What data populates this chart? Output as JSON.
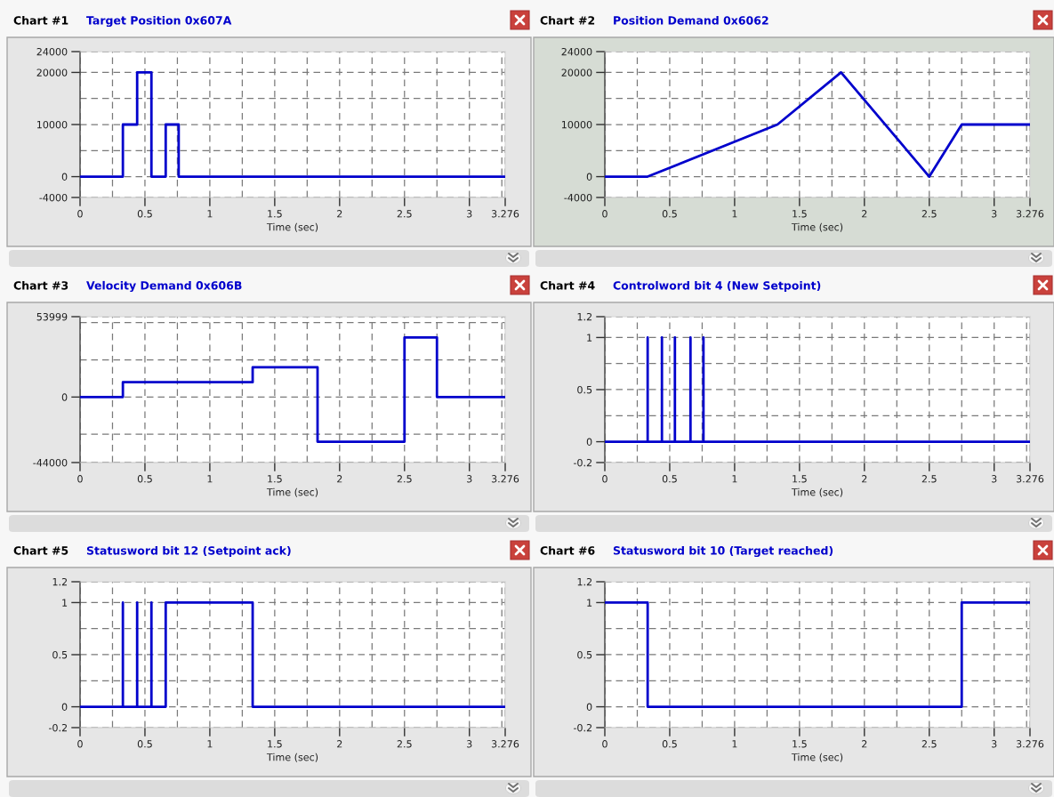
{
  "chart_data": [
    {
      "type": "step",
      "title": "Chart #1",
      "subtitle": "Target Position 0x607A",
      "xlabel": "Time (sec)",
      "color": "#0000cc",
      "grid": true,
      "x": [
        0,
        0.33,
        0.44,
        0.55,
        0.66,
        0.76,
        3.276
      ],
      "values": [
        0,
        10000,
        20000,
        0,
        10000,
        0,
        0
      ],
      "xlim": [
        0,
        3.276
      ],
      "xticks": [
        0,
        {
          "value": 0.25,
          "label": null
        },
        0.5,
        {
          "value": 0.75,
          "label": null
        },
        1,
        {
          "value": 1.25,
          "label": null
        },
        1.5,
        {
          "value": 1.75,
          "label": null
        },
        2,
        {
          "value": 2.25,
          "label": null
        },
        2.5,
        {
          "value": 2.75,
          "label": null
        },
        3,
        {
          "value": 3.25,
          "label": null
        },
        3.276
      ],
      "ylim": [
        -4000,
        24000
      ],
      "yticks": [
        24000,
        20000,
        {
          "value": 15000,
          "label": null
        },
        10000,
        {
          "value": 5000,
          "label": null
        },
        0,
        -4000
      ]
    },
    {
      "type": "line",
      "title": "Chart #2",
      "subtitle": "Position Demand 0x6062",
      "xlabel": "Time (sec)",
      "color": "#0000cc",
      "grid": true,
      "x": [
        0,
        0.33,
        1.33,
        1.82,
        2.5,
        2.75,
        3.276
      ],
      "values": [
        0,
        0,
        10000,
        20000,
        0,
        10000,
        10000
      ],
      "xlim": [
        0,
        3.276
      ],
      "xticks": [
        0,
        {
          "value": 0.25,
          "label": null
        },
        0.5,
        {
          "value": 0.75,
          "label": null
        },
        1,
        {
          "value": 1.25,
          "label": null
        },
        1.5,
        {
          "value": 1.75,
          "label": null
        },
        2,
        {
          "value": 2.25,
          "label": null
        },
        2.5,
        {
          "value": 2.75,
          "label": null
        },
        3,
        {
          "value": 3.25,
          "label": null
        },
        3.276
      ],
      "ylim": [
        -4000,
        24000
      ],
      "yticks": [
        24000,
        20000,
        {
          "value": 15000,
          "label": null
        },
        10000,
        {
          "value": 5000,
          "label": null
        },
        0,
        -4000
      ]
    },
    {
      "type": "step",
      "title": "Chart #3",
      "subtitle": "Velocity Demand 0x606B",
      "xlabel": "Time (sec)",
      "color": "#0000cc",
      "grid": true,
      "x": [
        0,
        0.33,
        1.33,
        1.83,
        2.5,
        2.75,
        3.276
      ],
      "values": [
        0,
        10000,
        20000,
        -30000,
        40000,
        0,
        0
      ],
      "xlim": [
        0,
        3.276
      ],
      "xticks": [
        0,
        {
          "value": 0.25,
          "label": null
        },
        0.5,
        {
          "value": 0.75,
          "label": null
        },
        1,
        {
          "value": 1.25,
          "label": null
        },
        1.5,
        {
          "value": 1.75,
          "label": null
        },
        2,
        {
          "value": 2.25,
          "label": null
        },
        2.5,
        {
          "value": 2.75,
          "label": null
        },
        3,
        {
          "value": 3.25,
          "label": null
        },
        3.276
      ],
      "ylim": [
        -44000,
        53999
      ],
      "yticks": [
        53999,
        {
          "value": 50000,
          "label": null
        },
        {
          "value": 25000,
          "label": null
        },
        0,
        {
          "value": -25000,
          "label": null
        },
        -44000
      ]
    },
    {
      "type": "step",
      "title": "Chart #4",
      "subtitle": "Controlword bit 4 (New Setpoint)",
      "xlabel": "Time (sec)",
      "color": "#0000cc",
      "grid": true,
      "x": [
        0,
        0.33,
        0.33,
        0.44,
        0.44,
        0.54,
        0.54,
        0.66,
        0.66,
        0.76,
        0.76,
        3.276
      ],
      "values": [
        0,
        1,
        0,
        1,
        0,
        1,
        0,
        1,
        0,
        1,
        0,
        0
      ],
      "xlim": [
        0,
        3.276
      ],
      "xticks": [
        0,
        {
          "value": 0.25,
          "label": null
        },
        0.5,
        {
          "value": 0.75,
          "label": null
        },
        1,
        {
          "value": 1.25,
          "label": null
        },
        1.5,
        {
          "value": 1.75,
          "label": null
        },
        2,
        {
          "value": 2.25,
          "label": null
        },
        2.5,
        {
          "value": 2.75,
          "label": null
        },
        3,
        {
          "value": 3.25,
          "label": null
        },
        3.276
      ],
      "ylim": [
        -0.2,
        1.2
      ],
      "yticks": [
        1.2,
        1,
        {
          "value": 0.75,
          "label": null
        },
        0.5,
        {
          "value": 0.25,
          "label": null
        },
        0,
        -0.2
      ]
    },
    {
      "type": "step",
      "title": "Chart #5",
      "subtitle": "Statusword bit 12 (Setpoint ack)",
      "xlabel": "Time (sec)",
      "color": "#0000cc",
      "grid": true,
      "x": [
        0,
        0.33,
        0.33,
        0.44,
        0.44,
        0.55,
        0.55,
        0.66,
        1.33,
        3.276
      ],
      "values": [
        0,
        1,
        0,
        1,
        0,
        1,
        0,
        1,
        0,
        0
      ],
      "xlim": [
        0,
        3.276
      ],
      "xticks": [
        0,
        {
          "value": 0.25,
          "label": null
        },
        0.5,
        {
          "value": 0.75,
          "label": null
        },
        1,
        {
          "value": 1.25,
          "label": null
        },
        1.5,
        {
          "value": 1.75,
          "label": null
        },
        2,
        {
          "value": 2.25,
          "label": null
        },
        2.5,
        {
          "value": 2.75,
          "label": null
        },
        3,
        {
          "value": 3.25,
          "label": null
        },
        3.276
      ],
      "ylim": [
        -0.2,
        1.2
      ],
      "yticks": [
        1.2,
        1,
        {
          "value": 0.75,
          "label": null
        },
        0.5,
        {
          "value": 0.25,
          "label": null
        },
        0,
        -0.2
      ]
    },
    {
      "type": "step",
      "title": "Chart #6",
      "subtitle": "Statusword bit 10 (Target reached)",
      "xlabel": "Time (sec)",
      "color": "#0000cc",
      "grid": true,
      "x": [
        0,
        0.33,
        2.75,
        3.276
      ],
      "values": [
        1,
        0,
        1,
        1
      ],
      "xlim": [
        0,
        3.276
      ],
      "xticks": [
        0,
        {
          "value": 0.25,
          "label": null
        },
        0.5,
        {
          "value": 0.75,
          "label": null
        },
        1,
        {
          "value": 1.25,
          "label": null
        },
        1.5,
        {
          "value": 1.75,
          "label": null
        },
        2,
        {
          "value": 2.25,
          "label": null
        },
        2.5,
        {
          "value": 2.75,
          "label": null
        },
        3,
        {
          "value": 3.25,
          "label": null
        },
        3.276
      ],
      "ylim": [
        -0.2,
        1.2
      ],
      "yticks": [
        1.2,
        1,
        {
          "value": 0.75,
          "label": null
        },
        0.5,
        {
          "value": 0.25,
          "label": null
        },
        0,
        -0.2
      ]
    }
  ]
}
